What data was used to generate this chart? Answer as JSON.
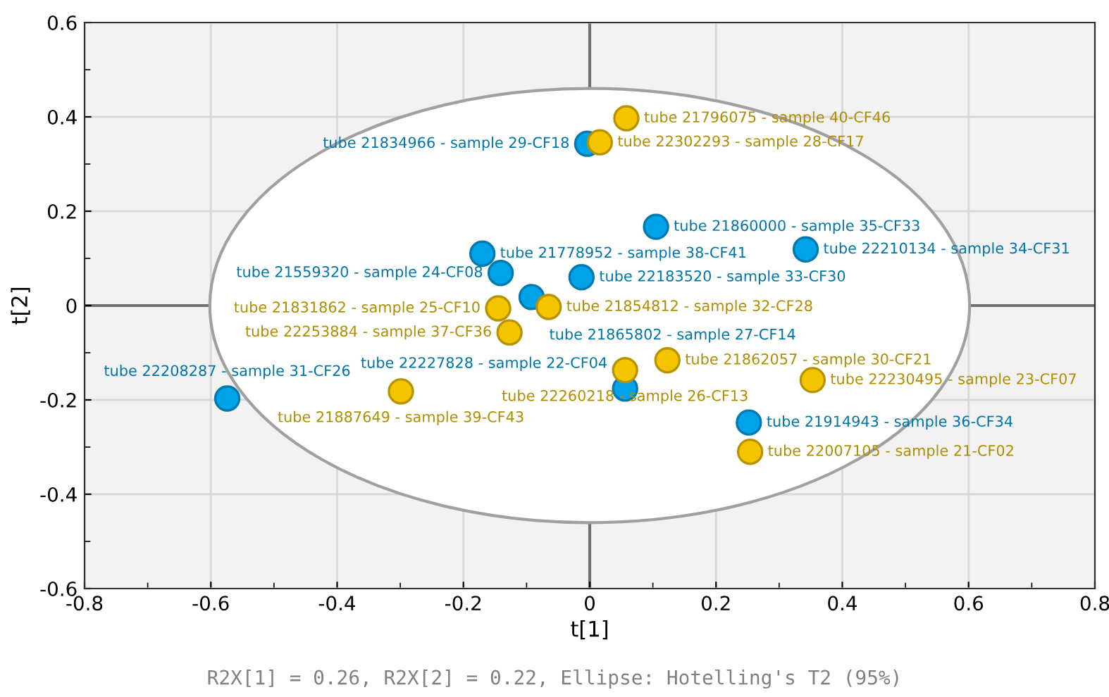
{
  "chart_data": {
    "type": "scatter",
    "xlabel": "t[1]",
    "ylabel": "t[2]",
    "annotations": [
      "R2X[1] = 0.26, R2X[2] = 0.22, Ellipse: Hotelling's T2 (95%)"
    ],
    "xlim": [
      -0.8,
      0.8
    ],
    "xticks": [
      -0.8,
      -0.6,
      -0.4,
      -0.2,
      0,
      0.2,
      0.4,
      0.6,
      0.8
    ],
    "ylim": [
      -0.6,
      0.6
    ],
    "yticks": [
      -0.6,
      -0.4,
      -0.2,
      0,
      0.2,
      0.4,
      0.6
    ],
    "grid": true,
    "marker": "circle",
    "series": [
      {
        "color": "#00a2e8",
        "x": [
          -0.004,
          0.105,
          0.342,
          -0.17,
          -0.141,
          -0.092,
          -0.013,
          0.056,
          -0.574,
          0.252
        ],
        "values": [
          0.343,
          0.167,
          0.119,
          0.11,
          0.069,
          0.018,
          0.06,
          -0.176,
          -0.197,
          -0.248
        ],
        "value_labels": [
          "tube 21834966 - sample 29-CF18",
          "tube 21860000 - sample 35-CF33",
          "tube 22210134 - sample 34-CF31",
          "tube 21778952 - sample 38-CF41",
          "tube 21559320 - sample 24-CF08",
          "tube 21865802 - sample 27-CF14",
          "tube 22183520 - sample 33-CF30",
          "tube 22227828 - sample 22-CF04",
          "tube 22208287 - sample 31-CF26",
          "tube 21914943 - sample 36-CF34"
        ]
      },
      {
        "color": "#f5c400",
        "x": [
          0.058,
          0.016,
          -0.145,
          -0.065,
          -0.127,
          0.123,
          0.056,
          -0.299,
          0.353,
          0.254
        ],
        "values": [
          0.397,
          0.346,
          -0.006,
          -0.003,
          -0.057,
          -0.116,
          -0.137,
          -0.182,
          -0.158,
          -0.31
        ],
        "value_labels": [
          "tube 21796075 - sample 40-CF46",
          "tube 22302293 - sample 28-CF17",
          "tube 21831862 - sample 25-CF10",
          "tube 21854812 - sample 32-CF28",
          "tube 22253884 - sample 37-CF36",
          "tube 21862057 - sample 30-CF21",
          "tube 22260218 - sample 26-CF13",
          "tube 21887649 - sample 39-CF43",
          "tube 22230495 - sample 23-CF07",
          "tube 22007105 - sample 21-CF02"
        ]
      }
    ]
  }
}
